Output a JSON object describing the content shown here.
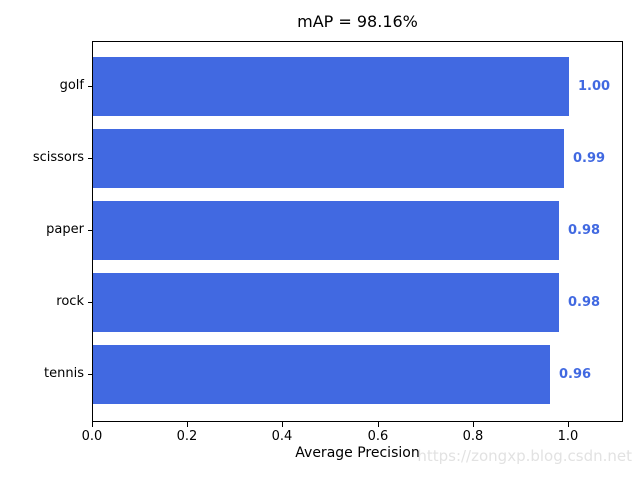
{
  "title": "mAP = 98.16%",
  "watermark": "https://zongxp.blog.csdn.net",
  "chart_data": {
    "type": "bar",
    "orientation": "horizontal",
    "title": "mAP = 98.16%",
    "xlabel": "Average Precision",
    "ylabel": "",
    "categories": [
      "golf",
      "scissors",
      "paper",
      "rock",
      "tennis"
    ],
    "values": [
      1.0,
      0.99,
      0.98,
      0.98,
      0.96
    ],
    "value_labels": [
      "1.00",
      "0.99",
      "0.98",
      "0.98",
      "0.96"
    ],
    "xlim": [
      0.0,
      1.115
    ],
    "xticks": [
      0.0,
      0.2,
      0.4,
      0.6,
      0.8,
      1.0
    ],
    "xtick_labels": [
      "0.0",
      "0.2",
      "0.4",
      "0.6",
      "0.8",
      "1.0"
    ],
    "grid": false,
    "legend": null,
    "bar_color": "#4169E1",
    "value_label_color": "#4169E1",
    "spine_color": "#000000",
    "watermark_color": "#e2e2e2"
  }
}
